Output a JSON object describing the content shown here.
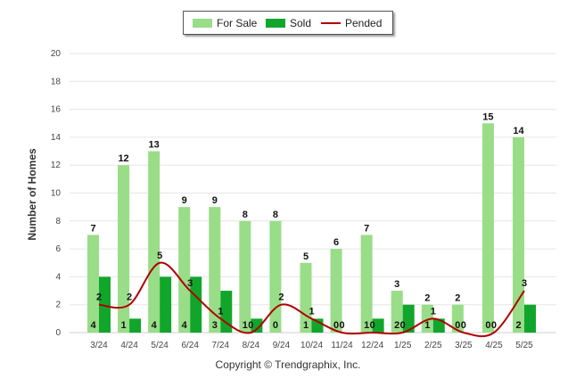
{
  "chart_data": {
    "type": "bar",
    "categories": [
      "3/24",
      "4/24",
      "5/24",
      "6/24",
      "7/24",
      "8/24",
      "9/24",
      "10/24",
      "11/24",
      "12/24",
      "1/25",
      "2/25",
      "3/25",
      "4/25",
      "5/25"
    ],
    "series": [
      {
        "name": "For Sale",
        "kind": "bar",
        "color": "#99dd88",
        "values": [
          7,
          12,
          13,
          9,
          9,
          8,
          8,
          5,
          6,
          7,
          3,
          2,
          2,
          15,
          14
        ]
      },
      {
        "name": "Sold",
        "kind": "bar",
        "color": "#11a62b",
        "values": [
          4,
          1,
          4,
          4,
          3,
          1,
          0,
          1,
          0,
          1,
          2,
          1,
          0,
          0,
          2
        ]
      },
      {
        "name": "Pended",
        "kind": "line",
        "color": "#b00000",
        "values": [
          2,
          2,
          5,
          3,
          1,
          0,
          2,
          1,
          0,
          0,
          0,
          1,
          0,
          0,
          3
        ]
      }
    ],
    "ylabel": "Number of Homes",
    "xlabel": "",
    "ylim": [
      0,
      20
    ],
    "yticks": [
      0,
      2,
      4,
      6,
      8,
      10,
      12,
      14,
      16,
      18,
      20
    ],
    "grid": true,
    "legend_position": "top-center"
  },
  "legend": {
    "for_sale": "For Sale",
    "sold": "Sold",
    "pended": "Pended"
  },
  "footer": {
    "copyright": "Copyright © Trendgraphix, Inc."
  }
}
